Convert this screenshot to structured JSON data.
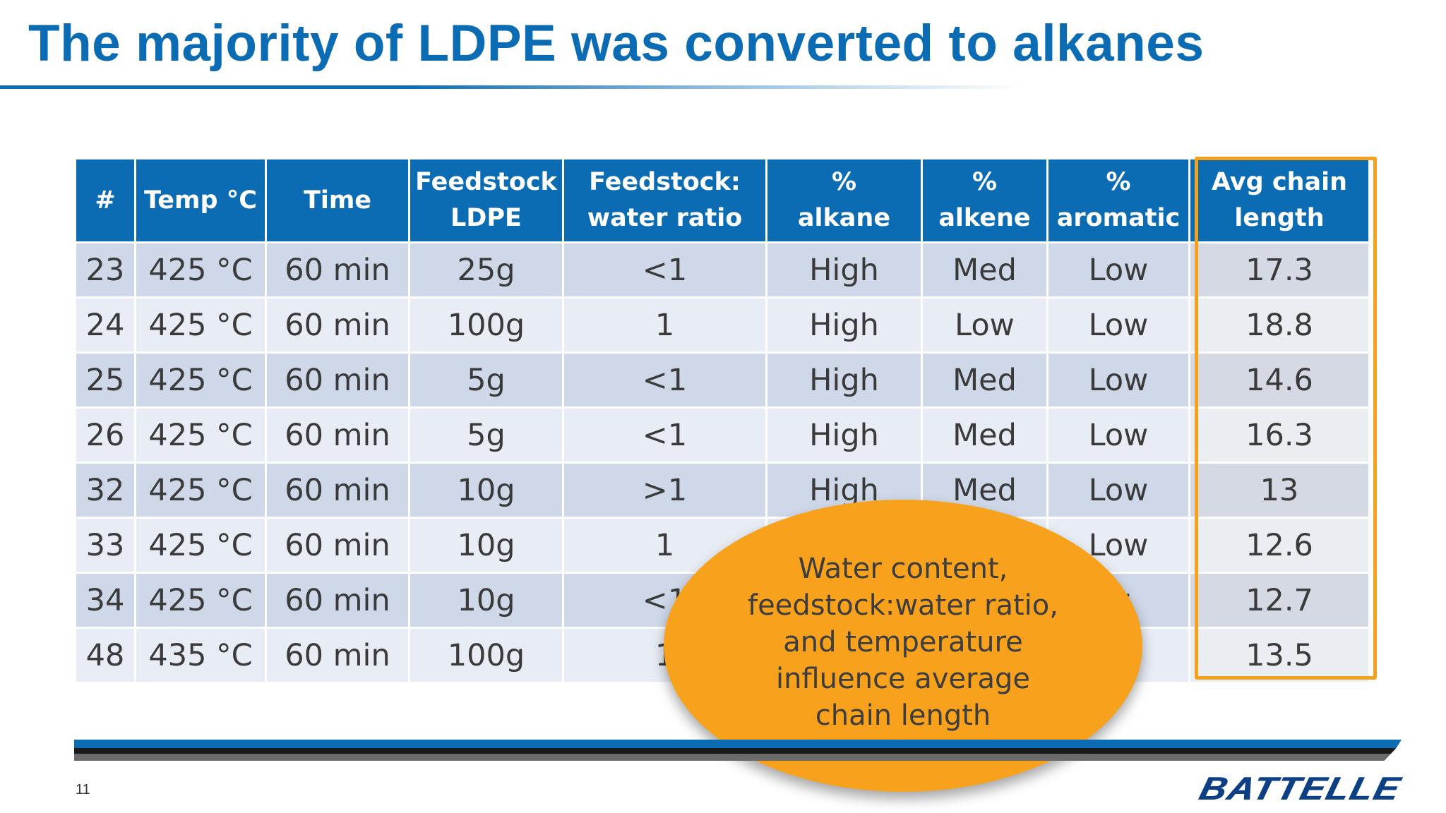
{
  "slide": {
    "title": "The majority of LDPE was converted to alkanes",
    "page_number": "11",
    "logo_text": "BATTELLE"
  },
  "table": {
    "headers": [
      {
        "line1": "#",
        "line2": ""
      },
      {
        "line1": "Temp °C",
        "line2": ""
      },
      {
        "line1": "Time",
        "line2": ""
      },
      {
        "line1": "Feedstock",
        "line2": "LDPE"
      },
      {
        "line1": "Feedstock:",
        "line2": "water ratio"
      },
      {
        "line1": "%",
        "line2": "alkane"
      },
      {
        "line1": "%",
        "line2": "alkene"
      },
      {
        "line1": "%",
        "line2": "aromatic"
      },
      {
        "line1": "Avg chain",
        "line2": "length"
      }
    ],
    "rows": [
      [
        "23",
        "425 °C",
        "60 min",
        "25g",
        "<1",
        "High",
        "Med",
        "Low",
        "17.3"
      ],
      [
        "24",
        "425 °C",
        "60 min",
        "100g",
        "1",
        "High",
        "Low",
        "Low",
        "18.8"
      ],
      [
        "25",
        "425 °C",
        "60 min",
        "5g",
        "<1",
        "High",
        "Med",
        "Low",
        "14.6"
      ],
      [
        "26",
        "425 °C",
        "60 min",
        "5g",
        "<1",
        "High",
        "Med",
        "Low",
        "16.3"
      ],
      [
        "32",
        "425 °C",
        "60 min",
        "10g",
        ">1",
        "High",
        "Med",
        "Low",
        "13"
      ],
      [
        "33",
        "425 °C",
        "60 min",
        "10g",
        "1",
        "",
        "",
        "Low",
        "12.6"
      ],
      [
        "34",
        "425 °C",
        "60 min",
        "10g",
        "<1",
        "",
        "",
        "w",
        "12.7"
      ],
      [
        "48",
        "435 °C",
        "60 min",
        "100g",
        "1",
        "",
        "",
        "v",
        "13.5"
      ]
    ]
  },
  "callout": {
    "text": "Water content, feedstock:water ratio, and temperature influence average chain length"
  },
  "colors": {
    "accent_blue": "#0b6cb4",
    "highlight_orange": "#f4a21e",
    "callout_orange": "#f7a11c",
    "logo_navy": "#0d3f84"
  }
}
